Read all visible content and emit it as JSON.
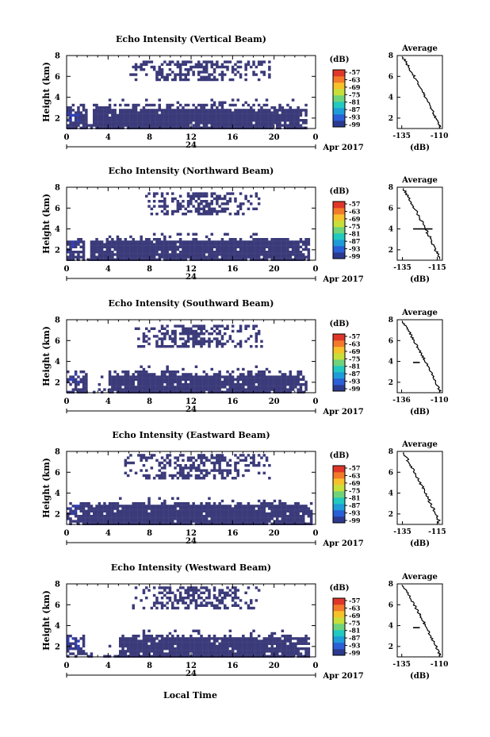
{
  "figure": {
    "x_axis_title": "Local Time",
    "date_label": "Apr 2017",
    "unit_label": "(dB)",
    "average_title": "Average",
    "colors": {
      "background": "#ffffff",
      "echo_fill": "#3b3a7a",
      "echo_strong": "#2f3fb8",
      "axis": "#000000"
    }
  },
  "chart_data": [
    {
      "type": "heatmap",
      "title": "Echo Intensity (Vertical Beam)",
      "ylabel": "Height (km)",
      "xlabel": "Local Time",
      "x_ticks": [
        "0",
        "4",
        "8",
        "12",
        "16",
        "20",
        "0"
      ],
      "x_day_label": "24",
      "date_label": "Apr 2017",
      "xlim": [
        0,
        24
      ],
      "ylim": [
        1,
        8
      ],
      "y_ticks": [
        2,
        4,
        6,
        8
      ],
      "colorbar": {
        "label": "(dB)",
        "ticks": [
          "-57",
          "-63",
          "-69",
          "-75",
          "-81",
          "-87",
          "-93",
          "-99"
        ]
      },
      "lower_layer": {
        "top_km": 3.4,
        "start_h": 0.0,
        "end_h": 23.2,
        "gap_h": [
          1.8,
          2.3
        ]
      },
      "upper_layer": {
        "bottom_km": 5.6,
        "top_km": 7.6,
        "start_h": 5.5,
        "end_h": 19.5
      },
      "average_profile": {
        "title": "Average",
        "xlabel": "(dB)",
        "x_ticks": [
          "-135",
          "-110"
        ],
        "xlim": [
          -138,
          -108
        ],
        "ylim": [
          1,
          8
        ],
        "y_ticks": [
          2,
          4,
          6,
          8
        ],
        "spike_km": null
      }
    },
    {
      "type": "heatmap",
      "title": "Echo Intensity (Northward Beam)",
      "ylabel": "Height (km)",
      "xlabel": "Local Time",
      "x_ticks": [
        "0",
        "4",
        "8",
        "12",
        "16",
        "20",
        "0"
      ],
      "x_day_label": "24",
      "date_label": "Apr 2017",
      "xlim": [
        0,
        24
      ],
      "ylim": [
        1,
        8
      ],
      "y_ticks": [
        2,
        4,
        6,
        8
      ],
      "colorbar": {
        "label": "(dB)",
        "ticks": [
          "-57",
          "-63",
          "-69",
          "-75",
          "-81",
          "-87",
          "-93",
          "-99"
        ]
      },
      "lower_layer": {
        "top_km": 3.3,
        "start_h": 0.0,
        "end_h": 23.4,
        "gap_h": [
          1.6,
          2.2
        ]
      },
      "upper_layer": {
        "bottom_km": 5.5,
        "top_km": 7.6,
        "start_h": 7.5,
        "end_h": 18.5
      },
      "average_profile": {
        "title": "Average",
        "xlabel": "(dB)",
        "x_ticks": [
          "-135",
          "-115"
        ],
        "xlim": [
          -138,
          -112
        ],
        "ylim": [
          1,
          8
        ],
        "y_ticks": [
          2,
          4,
          6,
          8
        ],
        "spike_km": 4.0
      }
    },
    {
      "type": "heatmap",
      "title": "Echo Intensity (Southward Beam)",
      "ylabel": "Height (km)",
      "xlabel": "Local Time",
      "x_ticks": [
        "0",
        "4",
        "8",
        "12",
        "16",
        "20",
        "0"
      ],
      "x_day_label": "24",
      "date_label": "Apr 2017",
      "xlim": [
        0,
        24
      ],
      "ylim": [
        1,
        8
      ],
      "y_ticks": [
        2,
        4,
        6,
        8
      ],
      "colorbar": {
        "label": "(dB)",
        "ticks": [
          "-57",
          "-63",
          "-69",
          "-75",
          "-81",
          "-87",
          "-93",
          "-99"
        ]
      },
      "lower_layer": {
        "top_km": 3.2,
        "start_h": 0.0,
        "end_h": 23.0,
        "gap_h": [
          1.8,
          3.8
        ]
      },
      "upper_layer": {
        "bottom_km": 5.5,
        "top_km": 7.6,
        "start_h": 6.5,
        "end_h": 18.8
      },
      "average_profile": {
        "title": "Average",
        "xlabel": "(dB)",
        "x_ticks": [
          "-136",
          "-110"
        ],
        "xlim": [
          -139,
          -108
        ],
        "ylim": [
          1,
          8
        ],
        "y_ticks": [
          2,
          4,
          6,
          8
        ],
        "spike_km": 3.9
      }
    },
    {
      "type": "heatmap",
      "title": "Echo Intensity (Eastward Beam)",
      "ylabel": "Height (km)",
      "xlabel": "Local Time",
      "x_ticks": [
        "0",
        "4",
        "8",
        "12",
        "16",
        "20",
        "0"
      ],
      "x_day_label": "24",
      "date_label": "Apr 2017",
      "xlim": [
        0,
        24
      ],
      "ylim": [
        1,
        8
      ],
      "y_ticks": [
        2,
        4,
        6,
        8
      ],
      "colorbar": {
        "label": "(dB)",
        "ticks": [
          "-57",
          "-63",
          "-69",
          "-75",
          "-81",
          "-87",
          "-93",
          "-99"
        ]
      },
      "lower_layer": {
        "top_km": 3.3,
        "start_h": 0.0,
        "end_h": 23.5,
        "gap_h": [
          1.9,
          2.0
        ]
      },
      "upper_layer": {
        "bottom_km": 5.4,
        "top_km": 7.8,
        "start_h": 5.5,
        "end_h": 19.5
      },
      "average_profile": {
        "title": "Average",
        "xlabel": "(dB)",
        "x_ticks": [
          "-135",
          "-115"
        ],
        "xlim": [
          -138,
          -112
        ],
        "ylim": [
          1,
          8
        ],
        "y_ticks": [
          2,
          4,
          6,
          8
        ],
        "spike_km": null
      }
    },
    {
      "type": "heatmap",
      "title": "Echo Intensity (Westward Beam)",
      "ylabel": "Height (km)",
      "xlabel": "Local Time",
      "x_ticks": [
        "0",
        "4",
        "8",
        "12",
        "16",
        "20",
        "0"
      ],
      "x_day_label": "24",
      "date_label": "Apr 2017",
      "xlim": [
        0,
        24
      ],
      "ylim": [
        1,
        8
      ],
      "y_ticks": [
        2,
        4,
        6,
        8
      ],
      "colorbar": {
        "label": "(dB)",
        "ticks": [
          "-57",
          "-63",
          "-69",
          "-75",
          "-81",
          "-87",
          "-93",
          "-99"
        ]
      },
      "lower_layer": {
        "top_km": 3.3,
        "start_h": 0.0,
        "end_h": 23.3,
        "gap_h": [
          1.6,
          4.8
        ]
      },
      "upper_layer": {
        "bottom_km": 5.6,
        "top_km": 7.8,
        "start_h": 6.3,
        "end_h": 18.5
      },
      "average_profile": {
        "title": "Average",
        "xlabel": "(dB)",
        "x_ticks": [
          "-135",
          "-110"
        ],
        "xlim": [
          -138,
          -108
        ],
        "ylim": [
          1,
          8
        ],
        "y_ticks": [
          2,
          4,
          6,
          8
        ],
        "spike_km": 3.8
      }
    }
  ]
}
